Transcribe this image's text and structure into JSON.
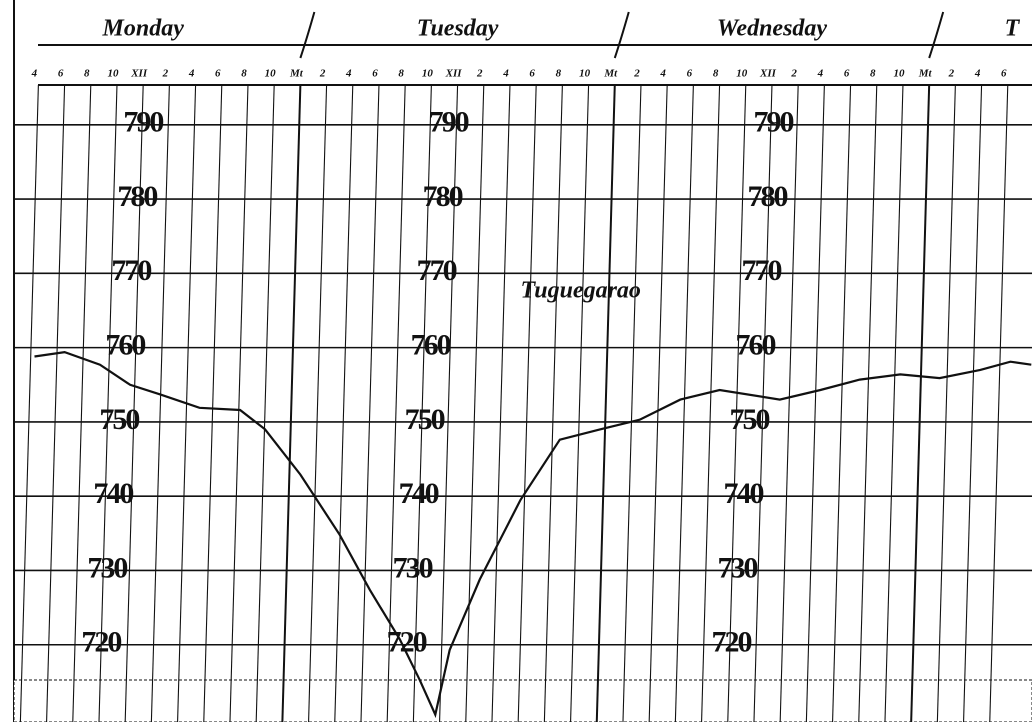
{
  "chart_data": {
    "type": "line",
    "day_labels": [
      "Monday",
      "Tuesday",
      "Wednesday",
      "T"
    ],
    "annotation": "Tuguegarao",
    "x": [
      3.7,
      6.0,
      8.7,
      11.0,
      13.3,
      16.3,
      19.4,
      21.3,
      24.0,
      27.0,
      29.3,
      31.6,
      33.1,
      34.3,
      35.4,
      37.7,
      40.8,
      43.8,
      46.9,
      49.9,
      53.0,
      56.0,
      60.6,
      63.7,
      66.7,
      69.8,
      72.8,
      75.9,
      78.2,
      79.8
    ],
    "values": [
      758.8,
      759.4,
      757.7,
      755.0,
      753.7,
      751.9,
      751.6,
      749.0,
      742.9,
      734.8,
      727.4,
      720.7,
      715.3,
      710.6,
      719.3,
      728.8,
      739.5,
      747.6,
      749.0,
      750.3,
      753.0,
      754.3,
      753.0,
      754.3,
      755.7,
      756.4,
      755.9,
      757.0,
      758.1,
      757.7
    ],
    "color": "#111111",
    "xlim": [
      1.07,
      79.85
    ],
    "xticks": [
      4,
      6,
      8,
      10,
      {
        "value": 12,
        "label": "XII"
      },
      {
        "value": 14,
        "label": "2"
      },
      {
        "value": 16,
        "label": "4"
      },
      {
        "value": 18,
        "label": "6"
      },
      {
        "value": 20,
        "label": "8"
      },
      {
        "value": 22,
        "label": "10"
      },
      {
        "value": 24,
        "label": "Mt"
      },
      {
        "value": 26,
        "label": "2"
      },
      {
        "value": 28,
        "label": "4"
      },
      {
        "value": 30,
        "label": "6"
      },
      {
        "value": 32,
        "label": "8"
      },
      {
        "value": 34,
        "label": "10"
      },
      {
        "value": 36,
        "label": "XII"
      },
      {
        "value": 38,
        "label": "2"
      },
      {
        "value": 40,
        "label": "4"
      },
      {
        "value": 42,
        "label": "6"
      },
      {
        "value": 44,
        "label": "8"
      },
      {
        "value": 46,
        "label": "10"
      },
      {
        "value": 48,
        "label": "Mt"
      },
      {
        "value": 50,
        "label": "2"
      },
      {
        "value": 52,
        "label": "4"
      },
      {
        "value": 54,
        "label": "6"
      },
      {
        "value": 56,
        "label": "8"
      },
      {
        "value": 58,
        "label": "10"
      },
      {
        "value": 60,
        "label": "XII"
      },
      {
        "value": 62,
        "label": "2"
      },
      {
        "value": 64,
        "label": "4"
      },
      {
        "value": 66,
        "label": "6"
      },
      {
        "value": 68,
        "label": "8"
      },
      {
        "value": 70,
        "label": "10"
      },
      {
        "value": 72,
        "label": "Mt"
      },
      {
        "value": 74,
        "label": "2"
      },
      {
        "value": 76,
        "label": "4"
      },
      {
        "value": 78,
        "label": "6"
      }
    ],
    "ylim": [
      709.6,
      806.8
    ],
    "yticks": [
      720,
      730,
      740,
      750,
      760,
      770,
      780,
      790
    ],
    "grid": true
  }
}
